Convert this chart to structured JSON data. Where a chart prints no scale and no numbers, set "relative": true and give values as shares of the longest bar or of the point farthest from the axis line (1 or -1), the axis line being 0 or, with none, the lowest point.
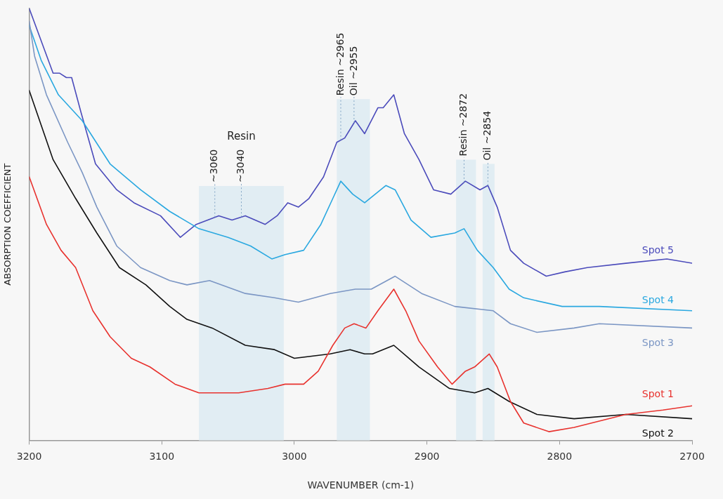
{
  "chart_data": {
    "type": "line",
    "relative": true,
    "xlabel": "WAVENUMBER (cm-1)",
    "ylabel": "ABSORPTION COEFFICIENT",
    "xlim": [
      3200,
      2700
    ],
    "xticks": [
      3200,
      3100,
      3000,
      2900,
      2800,
      2700
    ],
    "grid": false,
    "legend": false,
    "marker": "none",
    "line_style": "solid",
    "series": [
      {
        "name": "Spot 1",
        "color": "#e8322e",
        "x": [
          3200,
          3187,
          3176,
          3165,
          3152,
          3139,
          3123,
          3109,
          3090,
          3072,
          3042,
          3020,
          3007,
          2993,
          2982,
          2971,
          2962,
          2955,
          2946,
          2937,
          2925,
          2916,
          2906,
          2892,
          2881,
          2871,
          2864,
          2853,
          2847,
          2837,
          2827,
          2808,
          2789,
          2750,
          2722,
          2700
        ],
        "values": [
          0.61,
          0.5,
          0.44,
          0.4,
          0.3,
          0.24,
          0.19,
          0.17,
          0.13,
          0.11,
          0.11,
          0.12,
          0.13,
          0.13,
          0.16,
          0.22,
          0.26,
          0.27,
          0.26,
          0.3,
          0.35,
          0.3,
          0.23,
          0.17,
          0.13,
          0.16,
          0.17,
          0.2,
          0.17,
          0.09,
          0.04,
          0.02,
          0.03,
          0.06,
          0.07,
          0.08
        ]
      },
      {
        "name": "Spot 2",
        "color": "#111111",
        "x": [
          3200,
          3182,
          3165,
          3149,
          3132,
          3112,
          3094,
          3081,
          3062,
          3037,
          3015,
          3000,
          2973,
          2958,
          2947,
          2941,
          2925,
          2906,
          2883,
          2864,
          2854,
          2838,
          2817,
          2789,
          2750,
          2700
        ],
        "values": [
          0.81,
          0.65,
          0.56,
          0.48,
          0.4,
          0.36,
          0.31,
          0.28,
          0.26,
          0.22,
          0.21,
          0.19,
          0.2,
          0.21,
          0.2,
          0.2,
          0.22,
          0.17,
          0.12,
          0.11,
          0.12,
          0.09,
          0.06,
          0.05,
          0.06,
          0.05
        ]
      },
      {
        "name": "Spot 3",
        "color": "#7b96c4",
        "x": [
          3200,
          3196,
          3187,
          3171,
          3160,
          3149,
          3134,
          3116,
          3094,
          3081,
          3064,
          3037,
          3015,
          2997,
          2973,
          2954,
          2942,
          2924,
          2904,
          2879,
          2850,
          2837,
          2817,
          2789,
          2770,
          2700
        ],
        "values": [
          0.97,
          0.89,
          0.8,
          0.69,
          0.62,
          0.54,
          0.45,
          0.4,
          0.37,
          0.36,
          0.37,
          0.34,
          0.33,
          0.32,
          0.34,
          0.35,
          0.35,
          0.38,
          0.34,
          0.31,
          0.3,
          0.27,
          0.25,
          0.26,
          0.27,
          0.26
        ]
      },
      {
        "name": "Spot 4",
        "color": "#2aa8e0",
        "x": [
          3200,
          3191,
          3178,
          3160,
          3139,
          3116,
          3094,
          3072,
          3050,
          3033,
          3017,
          3007,
          2993,
          2980,
          2971,
          2965,
          2956,
          2947,
          2931,
          2924,
          2912,
          2897,
          2879,
          2872,
          2862,
          2850,
          2838,
          2827,
          2798,
          2770,
          2700
        ],
        "values": [
          0.96,
          0.88,
          0.8,
          0.74,
          0.64,
          0.58,
          0.53,
          0.49,
          0.47,
          0.45,
          0.42,
          0.43,
          0.44,
          0.5,
          0.56,
          0.6,
          0.57,
          0.55,
          0.59,
          0.58,
          0.51,
          0.47,
          0.48,
          0.49,
          0.44,
          0.4,
          0.35,
          0.33,
          0.31,
          0.31,
          0.3
        ]
      },
      {
        "name": "Spot 5",
        "color": "#4b4bbb",
        "x": [
          3200,
          3188,
          3182,
          3177,
          3172,
          3168,
          3161,
          3150,
          3134,
          3121,
          3101,
          3086,
          3074,
          3057,
          3047,
          3037,
          3022,
          3013,
          3005,
          2997,
          2989,
          2978,
          2968,
          2962,
          2954,
          2947,
          2937,
          2933,
          2925,
          2917,
          2906,
          2895,
          2882,
          2871,
          2860,
          2854,
          2847,
          2837,
          2827,
          2810,
          2796,
          2779,
          2750,
          2719,
          2700
        ],
        "values": [
          1.0,
          0.9,
          0.85,
          0.85,
          0.84,
          0.84,
          0.76,
          0.64,
          0.58,
          0.55,
          0.52,
          0.47,
          0.5,
          0.52,
          0.51,
          0.52,
          0.5,
          0.52,
          0.55,
          0.54,
          0.56,
          0.61,
          0.69,
          0.7,
          0.74,
          0.71,
          0.77,
          0.77,
          0.8,
          0.71,
          0.65,
          0.58,
          0.57,
          0.6,
          0.58,
          0.59,
          0.54,
          0.44,
          0.41,
          0.38,
          0.39,
          0.4,
          0.41,
          0.42,
          0.41
        ]
      }
    ],
    "annotations": [
      "Resin"
    ],
    "bands": [
      {
        "axis": "x",
        "from": 3072,
        "to": 3008,
        "color": "#e1edf3"
      },
      {
        "axis": "x",
        "from": 2968,
        "to": 2943,
        "color": "#e1edf3"
      },
      {
        "axis": "x",
        "from": 2878,
        "to": 2863,
        "color": "#e1edf3"
      },
      {
        "axis": "x",
        "from": 2858,
        "to": 2849,
        "color": "#e1edf3"
      }
    ],
    "ref_lines": [
      {
        "axis": "x",
        "value": 3060,
        "label": "~3060",
        "color": "#7fa3c4",
        "line_style": "dotted"
      },
      {
        "axis": "x",
        "value": 3040,
        "label": "~3040",
        "color": "#7fa3c4",
        "line_style": "dotted"
      },
      {
        "axis": "x",
        "value": 2965,
        "label": "Resin ~2965",
        "color": "#7fa3c4",
        "line_style": "dotted"
      },
      {
        "axis": "x",
        "value": 2955,
        "label": "Oil ~2955",
        "color": "#7fa3c4",
        "line_style": "dotted"
      },
      {
        "axis": "x",
        "value": 2872,
        "label": "Resin ~2872",
        "color": "#7fa3c4",
        "line_style": "dotted"
      },
      {
        "axis": "x",
        "value": 2854,
        "label": "Oil ~2854",
        "color": "#7fa3c4",
        "line_style": "dotted"
      }
    ]
  }
}
